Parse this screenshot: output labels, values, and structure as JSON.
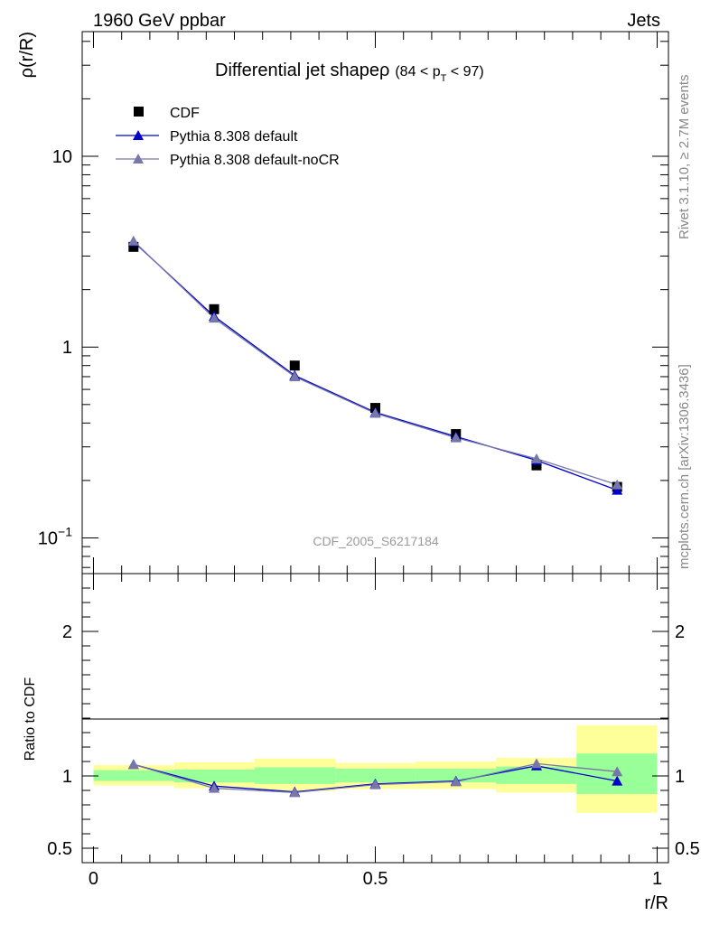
{
  "header": {
    "left": "1960 GeV ppbar",
    "right": "Jets"
  },
  "side_labels": {
    "rivet": "Rivet 3.1.10, ≥ 2.7M events",
    "mcplots": "mcplots.cern.ch [arXiv:1306.3436]"
  },
  "chart_data": [
    {
      "type": "scatter",
      "title_main": "Differential jet shapeρ",
      "title_cut_open": "(84 < p",
      "title_cut_sub": "T",
      "title_cut_close": " < 97)",
      "ylabel": "ρ(r/R)",
      "xlabel": "",
      "yscale": "log",
      "xlim": [
        -0.02,
        1.02
      ],
      "ylim": [
        0.065,
        45
      ],
      "yticks": [
        {
          "value": 10,
          "label": "10"
        },
        {
          "value": 1,
          "label": "1"
        },
        {
          "value": 0.1,
          "label": "10",
          "sup": "−1"
        }
      ],
      "watermark": "CDF_2005_S6217184",
      "legend_position": "top-left",
      "series": [
        {
          "name": "CDF",
          "marker": "square",
          "color": "#000000",
          "x": [
            0.071,
            0.214,
            0.357,
            0.5,
            0.643,
            0.786,
            0.929
          ],
          "y": [
            3.35,
            1.58,
            0.8,
            0.48,
            0.35,
            0.24,
            0.185
          ]
        },
        {
          "name": "Pythia 8.308 default",
          "marker": "triangle",
          "color": "#0000cc",
          "x": [
            0.071,
            0.214,
            0.357,
            0.5,
            0.643,
            0.786,
            0.929
          ],
          "y": [
            3.57,
            1.45,
            0.71,
            0.455,
            0.34,
            0.255,
            0.178
          ]
        },
        {
          "name": "Pythia 8.308 default-noCR",
          "marker": "triangle",
          "color": "#7777aa",
          "x": [
            0.071,
            0.214,
            0.357,
            0.5,
            0.643,
            0.786,
            0.929
          ],
          "y": [
            3.6,
            1.42,
            0.7,
            0.45,
            0.335,
            0.26,
            0.19
          ]
        }
      ]
    },
    {
      "type": "line",
      "ylabel": "Ratio to CDF",
      "xlabel": "r/R",
      "xlim": [
        -0.02,
        1.02
      ],
      "ylim": [
        0.4,
        2.4
      ],
      "yticks": [
        {
          "value": 2,
          "label": "2"
        },
        {
          "value": 1,
          "label": "1"
        },
        {
          "value": 0.5,
          "label": "0.5"
        }
      ],
      "xticks": [
        {
          "value": 0,
          "label": "0"
        },
        {
          "value": 0.5,
          "label": "0.5"
        },
        {
          "value": 1,
          "label": "1"
        }
      ],
      "bands": [
        {
          "x0": 0.0,
          "x1": 0.143,
          "yellow": [
            0.935,
            1.075
          ],
          "green": [
            0.965,
            1.04
          ]
        },
        {
          "x0": 0.143,
          "x1": 0.286,
          "yellow": [
            0.915,
            1.095
          ],
          "green": [
            0.955,
            1.045
          ]
        },
        {
          "x0": 0.286,
          "x1": 0.429,
          "yellow": [
            0.895,
            1.12
          ],
          "green": [
            0.945,
            1.06
          ]
        },
        {
          "x0": 0.429,
          "x1": 0.571,
          "yellow": [
            0.91,
            1.09
          ],
          "green": [
            0.955,
            1.05
          ]
        },
        {
          "x0": 0.571,
          "x1": 0.714,
          "yellow": [
            0.91,
            1.1
          ],
          "green": [
            0.955,
            1.05
          ]
        },
        {
          "x0": 0.714,
          "x1": 0.857,
          "yellow": [
            0.885,
            1.125
          ],
          "green": [
            0.945,
            1.065
          ]
        },
        {
          "x0": 0.857,
          "x1": 1.0,
          "yellow": [
            0.745,
            1.35
          ],
          "green": [
            0.875,
            1.155
          ]
        }
      ],
      "series": [
        {
          "name": "Pythia 8.308 default",
          "color": "#0000cc",
          "x": [
            0.071,
            0.214,
            0.357,
            0.5,
            0.643,
            0.786,
            0.929
          ],
          "y": [
            1.08,
            0.93,
            0.89,
            0.945,
            0.965,
            1.07,
            0.965
          ]
        },
        {
          "name": "Pythia 8.308 default-noCR",
          "color": "#7777aa",
          "x": [
            0.071,
            0.214,
            0.357,
            0.5,
            0.643,
            0.786,
            0.929
          ],
          "y": [
            1.08,
            0.915,
            0.885,
            0.94,
            0.96,
            1.085,
            1.03
          ]
        }
      ]
    }
  ]
}
